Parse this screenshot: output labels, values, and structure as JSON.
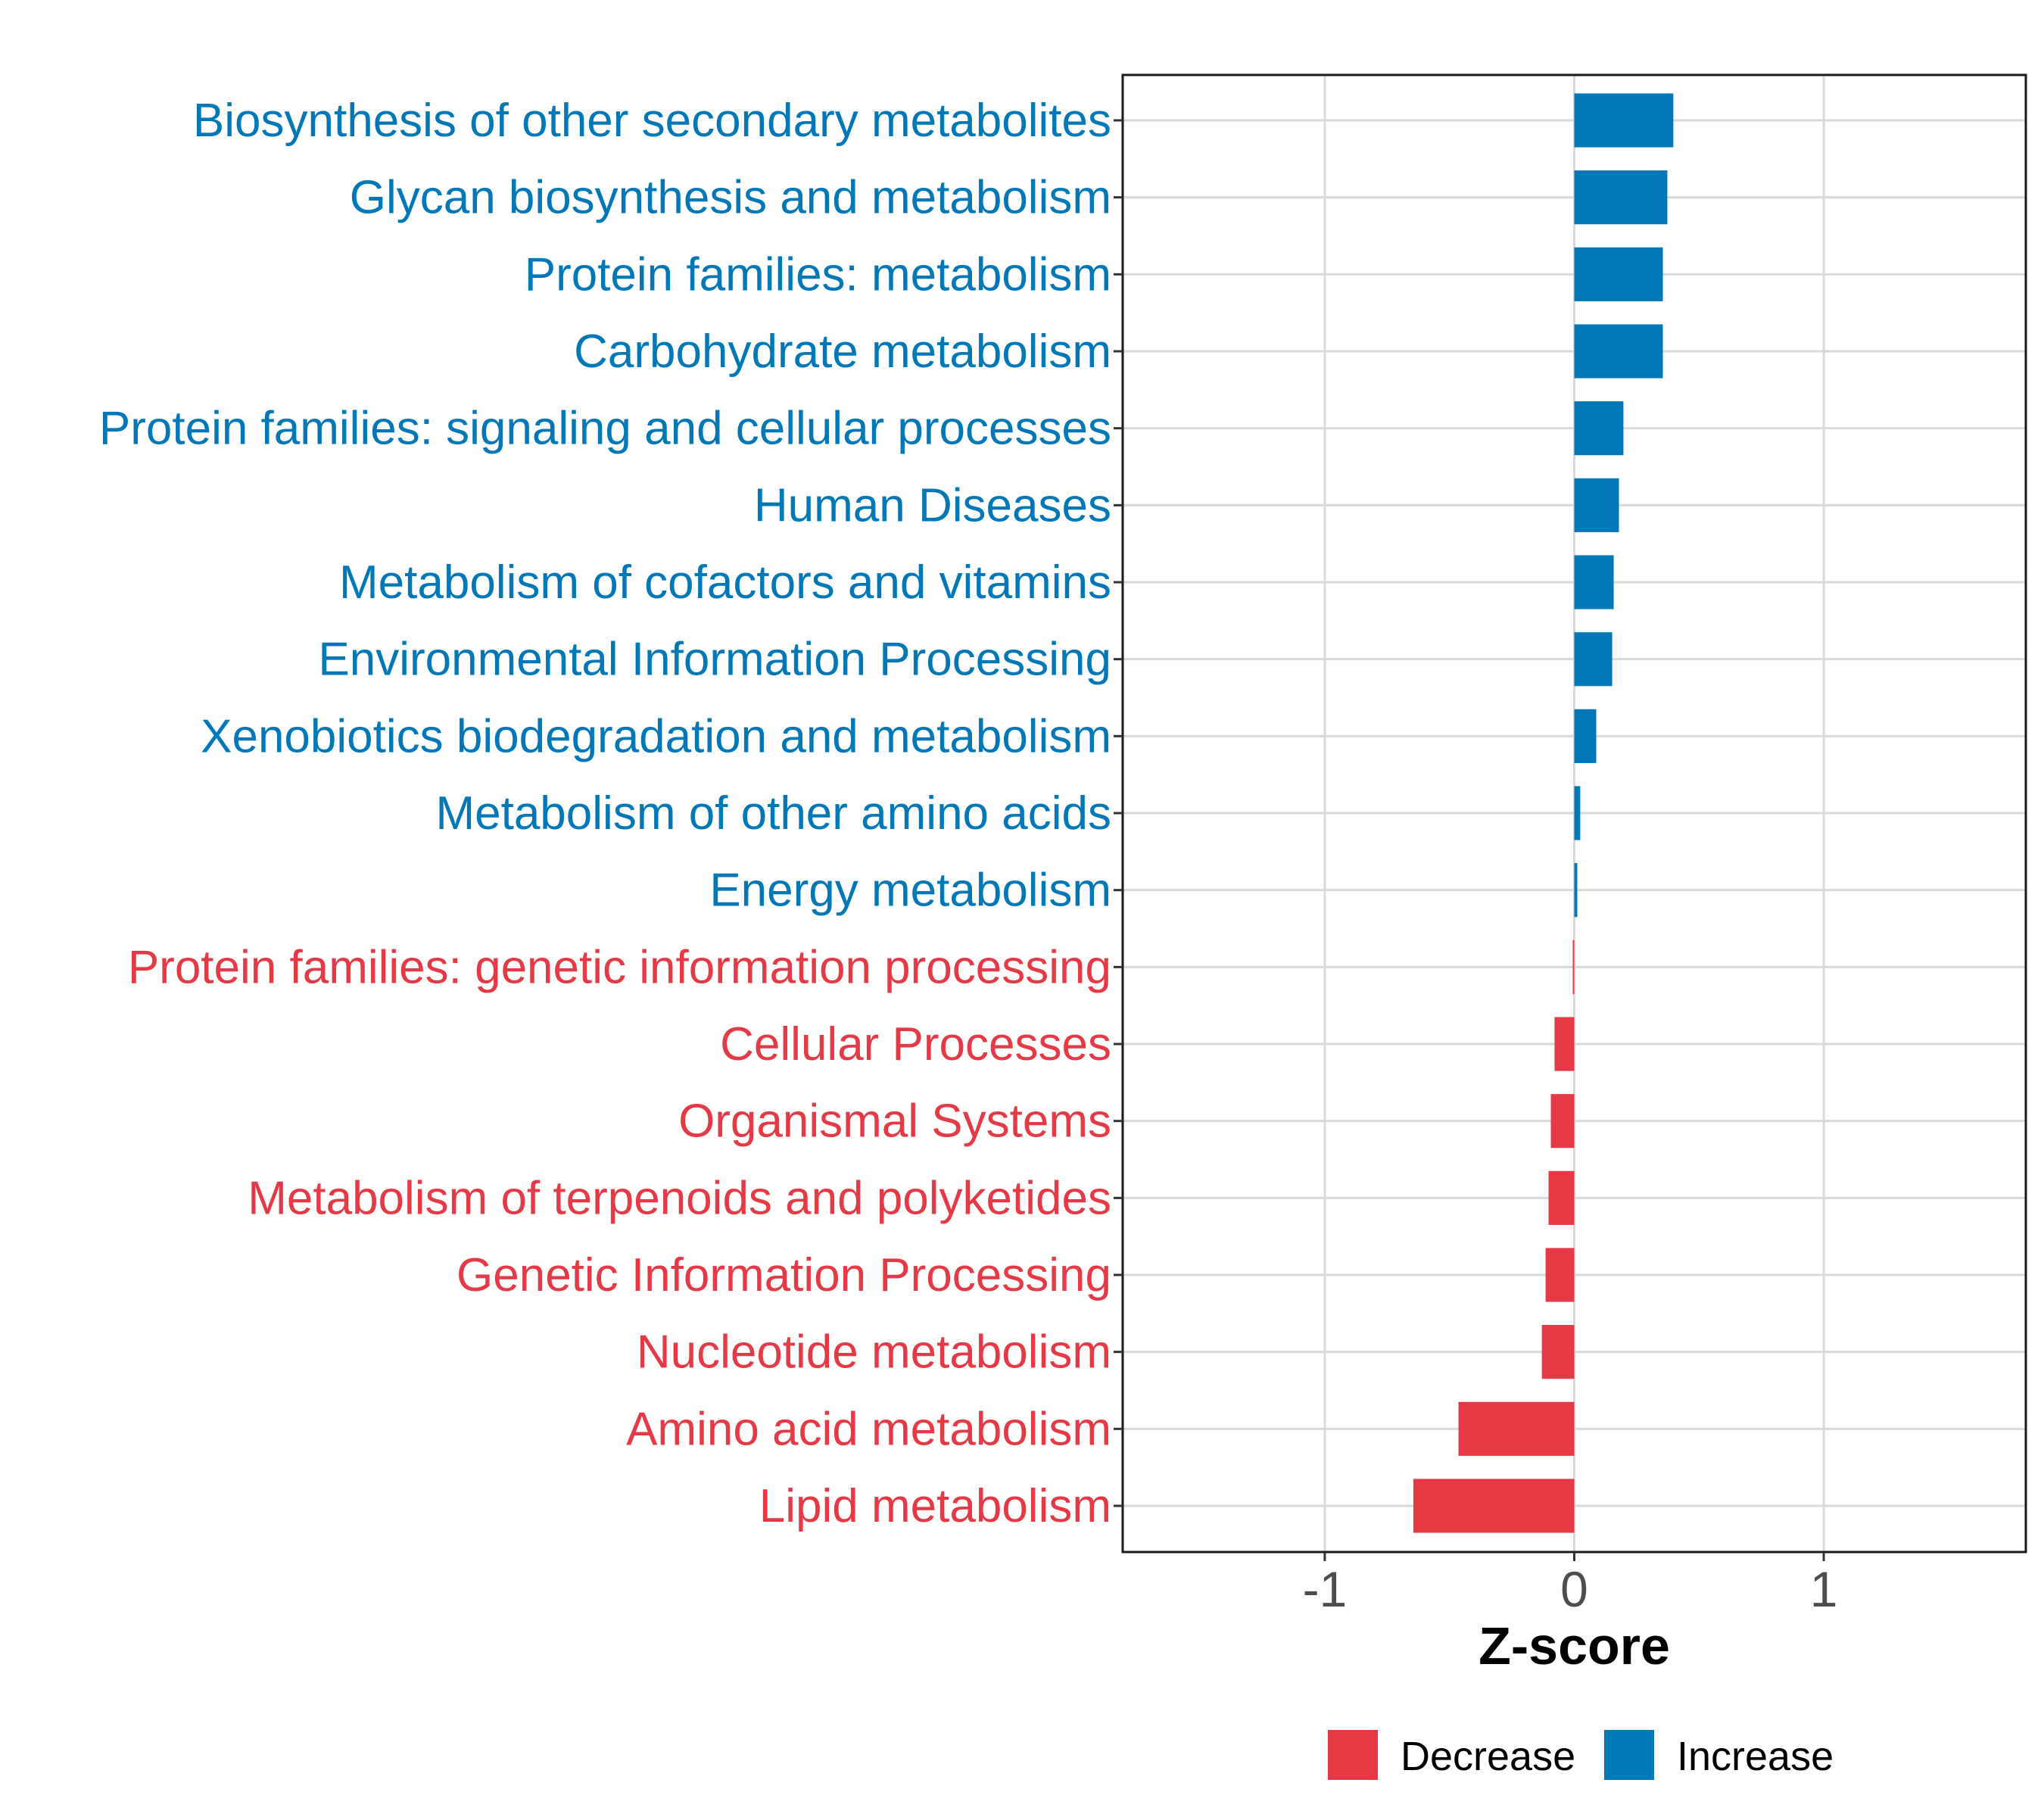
{
  "chart_data": {
    "type": "bar",
    "orientation": "horizontal",
    "title": "",
    "xlabel": "Z-score",
    "ylabel": "",
    "xlim": [
      -1.81,
      1.81
    ],
    "xticks": [
      -1,
      0,
      1
    ],
    "xtick_labels": [
      "-1",
      "0",
      "1"
    ],
    "grid": true,
    "legend": {
      "placement": "bottom",
      "entries": [
        {
          "name": "Decrease",
          "color": "#E63946"
        },
        {
          "name": "Increase",
          "color": "#0077B6"
        }
      ]
    },
    "categories": [
      "Biosynthesis of other secondary metabolites",
      "Glycan biosynthesis and metabolism",
      "Protein families: metabolism",
      "Carbohydrate metabolism",
      "Protein families: signaling and cellular processes",
      "Human Diseases",
      "Metabolism of cofactors and vitamins",
      "Environmental Information Processing",
      "Xenobiotics biodegradation and metabolism",
      "Metabolism of other amino acids",
      "Energy metabolism",
      "Protein families: genetic information processing",
      "Cellular Processes",
      "Organismal Systems",
      "Metabolism of terpenoids and polyketides",
      "Genetic Information Processing",
      "Nucleotide metabolism",
      "Amino acid metabolism",
      "Lipid metabolism"
    ],
    "values": [
      0.397,
      0.373,
      0.355,
      0.355,
      0.197,
      0.179,
      0.158,
      0.152,
      0.088,
      0.024,
      0.012,
      -0.006,
      -0.079,
      -0.094,
      -0.103,
      -0.115,
      -0.13,
      -0.464,
      -0.645
    ],
    "groups": [
      "Increase",
      "Increase",
      "Increase",
      "Increase",
      "Increase",
      "Increase",
      "Increase",
      "Increase",
      "Increase",
      "Increase",
      "Increase",
      "Decrease",
      "Decrease",
      "Decrease",
      "Decrease",
      "Decrease",
      "Decrease",
      "Decrease",
      "Decrease"
    ],
    "colors": {
      "Increase": "#0077B6",
      "Decrease": "#E63946"
    }
  }
}
